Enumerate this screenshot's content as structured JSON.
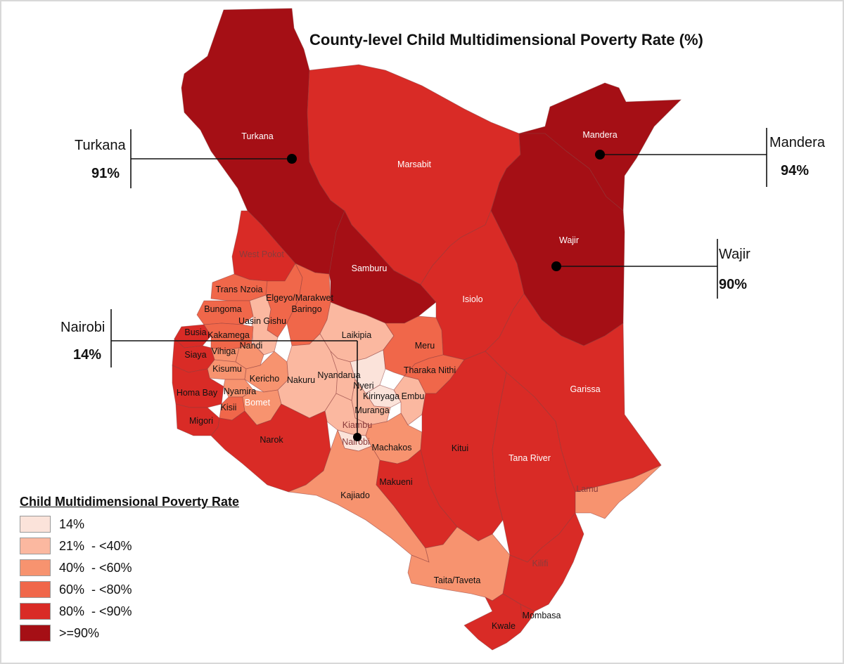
{
  "title": "County-level Child Multidimensional Poverty Rate (%)",
  "colors": {
    "c14": "#fbe3da",
    "c21_40": "#fbb8a0",
    "c40_60": "#f7936f",
    "c60_80": "#f0674a",
    "c80_90": "#d92b26",
    "c90": "#a50f15"
  },
  "legend": {
    "title": "Child Multidimensional Poverty Rate",
    "items": [
      {
        "label": "14%",
        "color": "#fbe3da"
      },
      {
        "label": "21%  - <40%",
        "color": "#fbb8a0"
      },
      {
        "label": "40%  - <60%",
        "color": "#f7936f"
      },
      {
        "label": "60%  - <80%",
        "color": "#f0674a"
      },
      {
        "label": "80%  - <90%",
        "color": "#d92b26"
      },
      {
        "label": ">=90%",
        "color": "#a50f15"
      }
    ]
  },
  "callouts": {
    "turkana": {
      "name": "Turkana",
      "value": "91%"
    },
    "mandera": {
      "name": "Mandera",
      "value": "94%"
    },
    "wajir": {
      "name": "Wajir",
      "value": "90%"
    },
    "nairobi": {
      "name": "Nairobi",
      "value": "14%"
    }
  },
  "counties": {
    "turkana": "Turkana",
    "marsabit": "Marsabit",
    "mandera": "Mandera",
    "wajir": "Wajir",
    "west_pokot": "West Pokot",
    "samburu": "Samburu",
    "isiolo": "Isiolo",
    "trans_nzoia": "Trans Nzoia",
    "elgeyo": "Elgeyo/Marakwet",
    "baringo": "Baringo",
    "bungoma": "Bungoma",
    "uasin_gishu": "Uasin Gishu",
    "busia": "Busia",
    "kakamega": "Kakamega",
    "laikipia": "Laikipia",
    "meru": "Meru",
    "nandi": "Nandi",
    "vihiga": "Vihiga",
    "siaya": "Siaya",
    "kisumu": "Kisumu",
    "nyandarua": "Nyandarua",
    "tharaka_nithi": "Tharaka Nithi",
    "nyeri": "Nyeri",
    "kericho": "Kericho",
    "nakuru": "Nakuru",
    "homa_bay": "Homa Bay",
    "nyamira": "Nyamira",
    "kirinyaga": "Kirinyaga",
    "embu": "Embu",
    "garissa": "Garissa",
    "kisii": "Kisii",
    "bomet": "Bomet",
    "muranga": "Muranga",
    "migori": "Migori",
    "kiambu": "Kiambu",
    "narok": "Narok",
    "nairobi": "Nairobi",
    "machakos": "Machakos",
    "kitui": "Kitui",
    "tana_river": "Tana River",
    "makueni": "Makueni",
    "lamu": "Lamu",
    "kajiado": "Kajiado",
    "kilifi": "Kilifi",
    "taita_taveta": "Taita/Taveta",
    "mombasa": "Mombasa",
    "kwale": "Kwale"
  }
}
